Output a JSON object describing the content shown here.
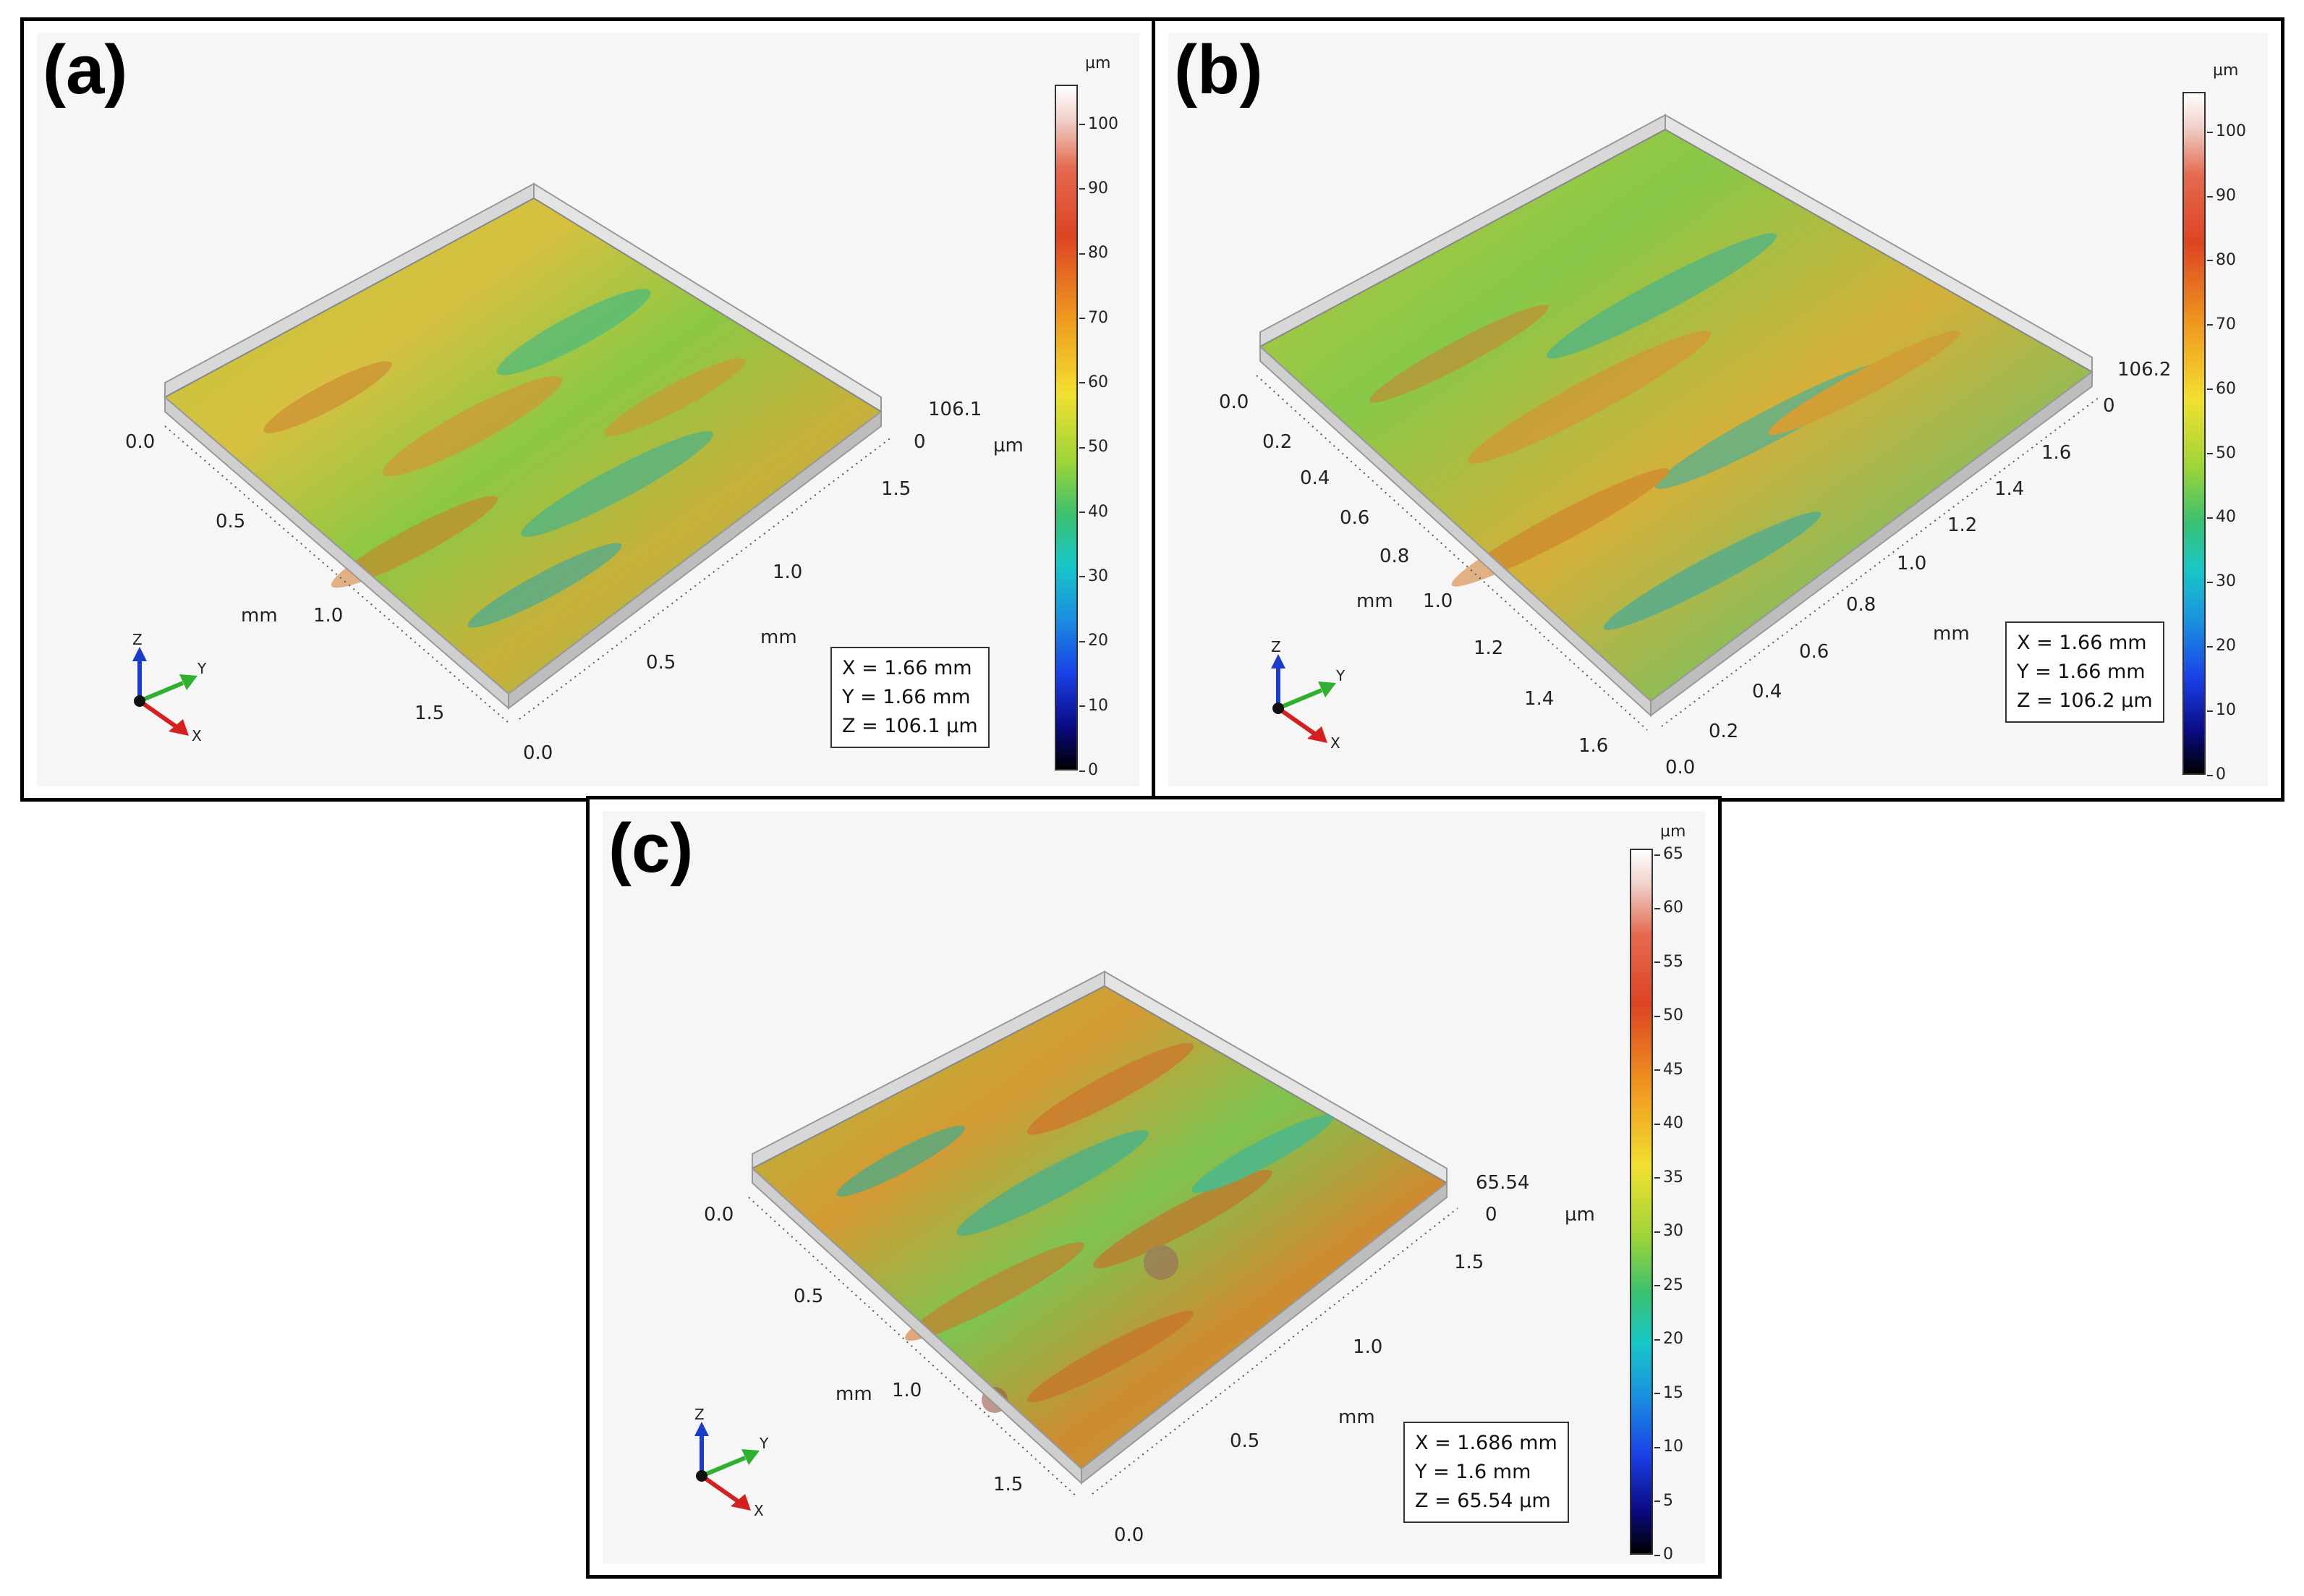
{
  "panels": [
    {
      "id": "a",
      "label": "(a)",
      "info": [
        "X = 1.66 mm",
        "Y = 1.66 mm",
        "Z = 106.1 µm"
      ],
      "colorbar": {
        "unit": "µm",
        "ticks": [
          "100",
          "90",
          "80",
          "70",
          "60",
          "50",
          "40",
          "30",
          "20",
          "10",
          "0"
        ]
      },
      "z_max": "106.1",
      "z_min": "0",
      "z_unit": "µm",
      "left_axis": [
        "0.0",
        "0.5",
        "1.0",
        "1.5"
      ],
      "right_axis": [
        "0.0",
        "0.5",
        "1.0",
        "1.5"
      ],
      "axis_unit": "mm"
    },
    {
      "id": "b",
      "label": "(b)",
      "info": [
        "X = 1.66 mm",
        "Y = 1.66 mm",
        "Z = 106.2 µm"
      ],
      "colorbar": {
        "unit": "µm",
        "ticks": [
          "100",
          "90",
          "80",
          "70",
          "60",
          "50",
          "40",
          "30",
          "20",
          "10",
          "0"
        ]
      },
      "z_max": "106.2",
      "z_min": "0",
      "z_unit": "",
      "left_axis": [
        "0.0",
        "0.2",
        "0.4",
        "0.6",
        "0.8",
        "1.0",
        "1.2",
        "1.4",
        "1.6"
      ],
      "right_axis": [
        "0.0",
        "0.2",
        "0.4",
        "0.6",
        "0.8",
        "1.0",
        "1.2",
        "1.4",
        "1.6"
      ],
      "axis_unit": "mm"
    },
    {
      "id": "c",
      "label": "(c)",
      "info": [
        "X = 1.686 mm",
        "Y = 1.6 mm",
        "Z = 65.54 µm"
      ],
      "colorbar": {
        "unit": "µm",
        "ticks": [
          "65",
          "60",
          "55",
          "50",
          "45",
          "40",
          "35",
          "30",
          "25",
          "20",
          "15",
          "10",
          "5",
          "0"
        ]
      },
      "z_max": "65.54",
      "z_min": "0",
      "z_unit": "µm",
      "left_axis": [
        "0.0",
        "0.5",
        "1.0",
        "1.5"
      ],
      "right_axis": [
        "0.0",
        "0.5",
        "1.0",
        "1.5"
      ],
      "axis_unit": "mm"
    }
  ],
  "triad": {
    "x": "X",
    "y": "Y",
    "z": "Z"
  },
  "colors": {
    "x_axis": "#d42020",
    "y_axis": "#30b030",
    "z_axis": "#1a3cc8"
  }
}
